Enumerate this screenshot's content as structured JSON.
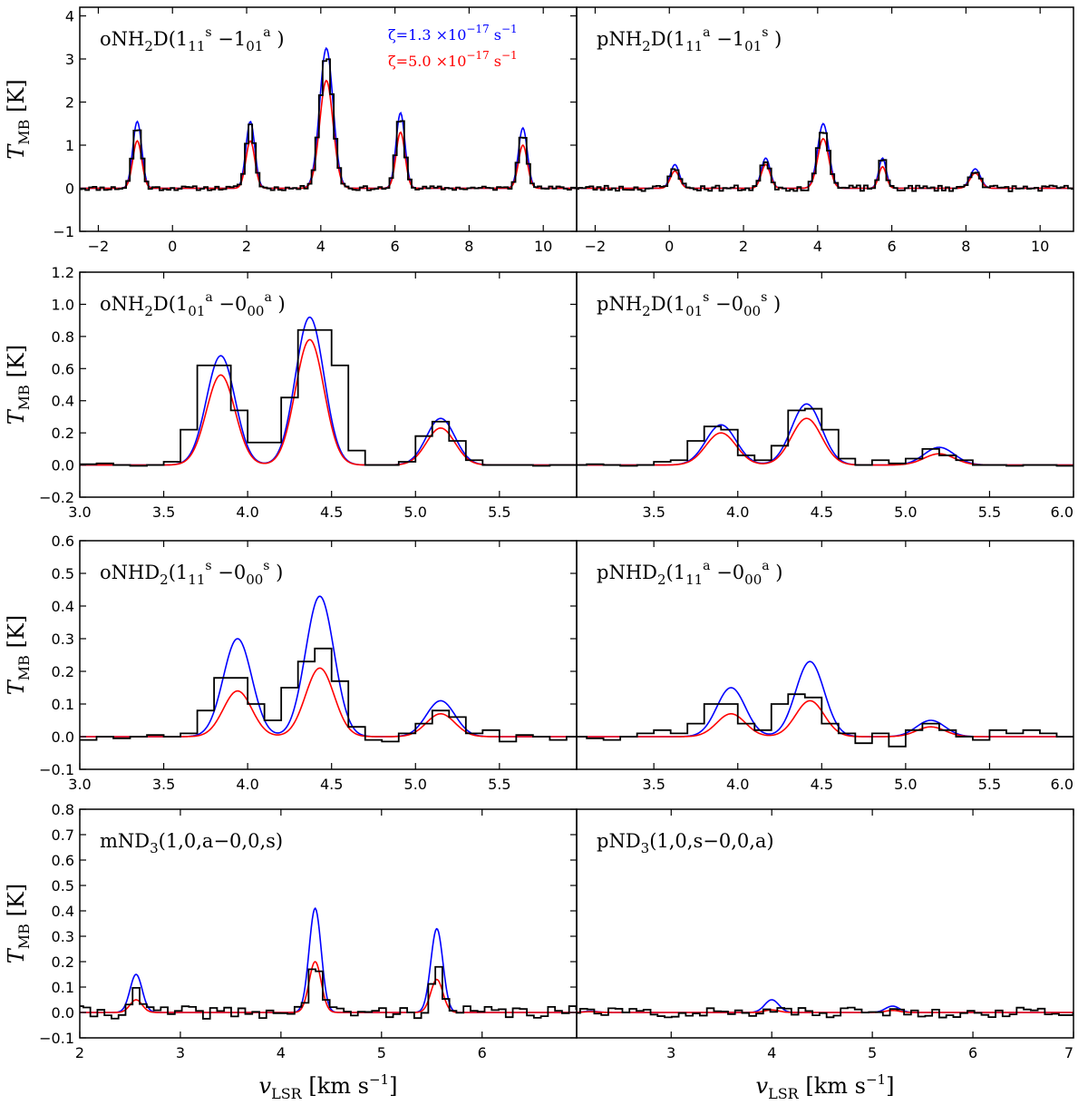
{
  "colors": {
    "observed": "#000000",
    "model_low_zeta": "#0000ff",
    "model_high_zeta": "#ff0000"
  },
  "legend": {
    "low": {
      "prefix": "ζ=1.3 ×10",
      "exp": "−17",
      "unit": "s",
      "unit_exp": "−1"
    },
    "high": {
      "prefix": "ζ=5.0 ×10",
      "exp": "−17",
      "unit": "s",
      "unit_exp": "−1"
    }
  },
  "axis_titles": {
    "y": {
      "main": "T",
      "sub": "MB",
      "unit": " [K]"
    },
    "x": {
      "main": "v",
      "sub": "LSR",
      "unit": " [km s",
      "unit_exp": "−1",
      "close": "]"
    }
  },
  "chart_data": [
    {
      "type": "line",
      "id": "oNH2D-11-10",
      "label": {
        "species": "oNH",
        "sub": "2",
        "rest": "D(1",
        "q1sub": "11",
        "q1sup": "s",
        "mid": " −1",
        "q2sub": "01",
        "q2sup": "a",
        "end": " )"
      },
      "xlim": [
        -2.5,
        10.9
      ],
      "ylim": [
        -1,
        4.2
      ],
      "xticks": [
        -2,
        0,
        2,
        4,
        6,
        8,
        10
      ],
      "xtick_labels": [
        "−2",
        "0",
        "2",
        "4",
        "6",
        "8",
        "10"
      ],
      "yticks": [
        -1,
        0,
        1,
        2,
        3,
        4
      ],
      "ytick_labels": [
        "−1",
        "0",
        "1",
        "2",
        "3",
        "4"
      ],
      "components": [
        {
          "center": -0.95,
          "width": 0.12,
          "blue": 1.55,
          "red": 1.1
        },
        {
          "center": 2.1,
          "width": 0.12,
          "blue": 1.55,
          "red": 1.1
        },
        {
          "center": 4.15,
          "width": 0.18,
          "blue": 3.25,
          "red": 2.5
        },
        {
          "center": 6.15,
          "width": 0.12,
          "blue": 1.75,
          "red": 1.3
        },
        {
          "center": 9.45,
          "width": 0.12,
          "blue": 1.4,
          "red": 1.0
        }
      ],
      "observed_scale": 0.95,
      "noise": 0.05,
      "step": 0.1,
      "seed": 11
    },
    {
      "type": "line",
      "id": "pNH2D-11-10",
      "label": {
        "species": "pNH",
        "sub": "2",
        "rest": "D(1",
        "q1sub": "11",
        "q1sup": "a",
        "mid": " −1",
        "q2sub": "01",
        "q2sup": "s",
        "end": " )"
      },
      "xlim": [
        -2.5,
        10.9
      ],
      "ylim": [
        -1,
        4.2
      ],
      "xticks": [
        -2,
        0,
        2,
        4,
        6,
        8,
        10
      ],
      "xtick_labels": [
        "−2",
        "0",
        "2",
        "4",
        "6",
        "8",
        "10"
      ],
      "yticks": [],
      "ytick_labels": [],
      "components": [
        {
          "center": 0.15,
          "width": 0.12,
          "blue": 0.55,
          "red": 0.4
        },
        {
          "center": 2.6,
          "width": 0.12,
          "blue": 0.7,
          "red": 0.55
        },
        {
          "center": 4.15,
          "width": 0.15,
          "blue": 1.5,
          "red": 1.15
        },
        {
          "center": 5.75,
          "width": 0.1,
          "blue": 0.7,
          "red": 0.5
        },
        {
          "center": 8.25,
          "width": 0.14,
          "blue": 0.45,
          "red": 0.35
        }
      ],
      "observed_scale": 0.95,
      "noise": 0.07,
      "step": 0.1,
      "seed": 23
    },
    {
      "type": "line",
      "id": "oNH2D-01-00",
      "label": {
        "species": "oNH",
        "sub": "2",
        "rest": "D(1",
        "q1sub": "01",
        "q1sup": "a",
        "mid": " −0",
        "q2sub": "00",
        "q2sup": "a",
        "end": " )"
      },
      "xlim": [
        3.0,
        5.96
      ],
      "ylim": [
        -0.2,
        1.2
      ],
      "xticks": [
        3.0,
        3.5,
        4.0,
        4.5,
        5.0,
        5.5
      ],
      "xtick_labels": [
        "3.0",
        "3.5",
        "4.0",
        "4.5",
        "5.0",
        "5.5"
      ],
      "yticks": [
        -0.2,
        0.0,
        0.2,
        0.4,
        0.6,
        0.8,
        1.0,
        1.2
      ],
      "ytick_labels": [
        "−0.2",
        "0.0",
        "0.2",
        "0.4",
        "0.6",
        "0.8",
        "1.0",
        "1.2"
      ],
      "components": [
        {
          "center": 3.84,
          "width": 0.085,
          "blue": 0.68,
          "red": 0.56
        },
        {
          "center": 4.37,
          "width": 0.085,
          "blue": 0.92,
          "red": 0.78
        },
        {
          "center": 5.15,
          "width": 0.085,
          "blue": 0.29,
          "red": 0.23
        }
      ],
      "observed": [
        [
          2.95,
          0.0
        ],
        [
          3.05,
          0.005
        ],
        [
          3.15,
          0.01
        ],
        [
          3.25,
          0.0
        ],
        [
          3.35,
          -0.005
        ],
        [
          3.45,
          0.0
        ],
        [
          3.55,
          0.02
        ],
        [
          3.65,
          0.22
        ],
        [
          3.75,
          0.62
        ],
        [
          3.85,
          0.62
        ],
        [
          3.95,
          0.34
        ],
        [
          4.05,
          0.14
        ],
        [
          4.15,
          0.14
        ],
        [
          4.25,
          0.42
        ],
        [
          4.35,
          0.84
        ],
        [
          4.45,
          0.84
        ],
        [
          4.55,
          0.62
        ],
        [
          4.65,
          0.09
        ],
        [
          4.75,
          0.0
        ],
        [
          4.85,
          0.0
        ],
        [
          4.95,
          0.02
        ],
        [
          5.05,
          0.18
        ],
        [
          5.15,
          0.27
        ],
        [
          5.25,
          0.15
        ],
        [
          5.35,
          0.03
        ],
        [
          5.45,
          0.0
        ],
        [
          5.55,
          0.0
        ],
        [
          5.65,
          0.0
        ],
        [
          5.75,
          -0.005
        ],
        [
          5.85,
          0.0
        ],
        [
          5.95,
          0.0
        ]
      ]
    },
    {
      "type": "line",
      "id": "pNH2D-01-00",
      "label": {
        "species": "pNH",
        "sub": "2",
        "rest": "D(1",
        "q1sub": "01",
        "q1sup": "s",
        "mid": " −0",
        "q2sub": "00",
        "q2sup": "s",
        "end": " )"
      },
      "xlim": [
        3.04,
        6.0
      ],
      "ylim": [
        -0.2,
        1.2
      ],
      "xticks": [
        3.5,
        4.0,
        4.5,
        5.0,
        5.5,
        6.0
      ],
      "xtick_labels": [
        "3.5",
        "4.0",
        "4.5",
        "5.0",
        "5.5",
        "6.0"
      ],
      "yticks": [],
      "ytick_labels": [],
      "components": [
        {
          "center": 3.9,
          "width": 0.09,
          "blue": 0.25,
          "red": 0.2
        },
        {
          "center": 4.41,
          "width": 0.09,
          "blue": 0.38,
          "red": 0.29
        },
        {
          "center": 5.2,
          "width": 0.09,
          "blue": 0.11,
          "red": 0.07
        }
      ],
      "observed": [
        [
          3.05,
          0.0
        ],
        [
          3.15,
          0.005
        ],
        [
          3.25,
          0.0
        ],
        [
          3.35,
          -0.005
        ],
        [
          3.45,
          0.0
        ],
        [
          3.55,
          0.02
        ],
        [
          3.65,
          0.03
        ],
        [
          3.75,
          0.15
        ],
        [
          3.85,
          0.24
        ],
        [
          3.95,
          0.22
        ],
        [
          4.05,
          0.06
        ],
        [
          4.15,
          0.03
        ],
        [
          4.25,
          0.12
        ],
        [
          4.35,
          0.34
        ],
        [
          4.45,
          0.35
        ],
        [
          4.55,
          0.22
        ],
        [
          4.65,
          0.04
        ],
        [
          4.75,
          0.0
        ],
        [
          4.85,
          0.03
        ],
        [
          4.95,
          0.01
        ],
        [
          5.05,
          0.04
        ],
        [
          5.15,
          0.1
        ],
        [
          5.25,
          0.06
        ],
        [
          5.35,
          0.03
        ],
        [
          5.45,
          0.0
        ],
        [
          5.55,
          0.0
        ],
        [
          5.65,
          -0.005
        ],
        [
          5.75,
          0.0
        ],
        [
          5.85,
          0.0
        ],
        [
          5.95,
          -0.005
        ]
      ]
    },
    {
      "type": "line",
      "id": "oNHD2-11-00",
      "label": {
        "species": "oNHD",
        "sub": "2",
        "rest": "(1",
        "q1sub": "11",
        "q1sup": "s",
        "mid": " −0",
        "q2sub": "00",
        "q2sup": "s",
        "end": " )"
      },
      "xlim": [
        3.0,
        5.96
      ],
      "ylim": [
        -0.1,
        0.6
      ],
      "xticks": [
        3.0,
        3.5,
        4.0,
        4.5,
        5.0,
        5.5
      ],
      "xtick_labels": [
        "3.0",
        "3.5",
        "4.0",
        "4.5",
        "5.0",
        "5.5"
      ],
      "yticks": [
        -0.1,
        0.0,
        0.1,
        0.2,
        0.3,
        0.4,
        0.5,
        0.6
      ],
      "ytick_labels": [
        "−0.1",
        "0.0",
        "0.1",
        "0.2",
        "0.3",
        "0.4",
        "0.5",
        "0.6"
      ],
      "components": [
        {
          "center": 3.94,
          "width": 0.085,
          "blue": 0.3,
          "red": 0.14
        },
        {
          "center": 4.43,
          "width": 0.085,
          "blue": 0.43,
          "red": 0.21
        },
        {
          "center": 5.15,
          "width": 0.085,
          "blue": 0.11,
          "red": 0.07
        }
      ],
      "observed": [
        [
          3.05,
          -0.01
        ],
        [
          3.15,
          0.0
        ],
        [
          3.25,
          -0.005
        ],
        [
          3.35,
          0.0
        ],
        [
          3.45,
          0.005
        ],
        [
          3.55,
          0.0
        ],
        [
          3.65,
          0.01
        ],
        [
          3.75,
          0.08
        ],
        [
          3.85,
          0.18
        ],
        [
          3.95,
          0.18
        ],
        [
          4.05,
          0.1
        ],
        [
          4.15,
          0.05
        ],
        [
          4.25,
          0.15
        ],
        [
          4.35,
          0.23
        ],
        [
          4.45,
          0.27
        ],
        [
          4.55,
          0.17
        ],
        [
          4.65,
          0.03
        ],
        [
          4.75,
          -0.01
        ],
        [
          4.85,
          -0.015
        ],
        [
          4.95,
          0.01
        ],
        [
          5.05,
          0.04
        ],
        [
          5.15,
          0.08
        ],
        [
          5.25,
          0.06
        ],
        [
          5.35,
          0.01
        ],
        [
          5.45,
          0.02
        ],
        [
          5.55,
          -0.015
        ],
        [
          5.65,
          0.005
        ],
        [
          5.75,
          0.0
        ],
        [
          5.85,
          -0.01
        ],
        [
          5.95,
          0.0
        ]
      ]
    },
    {
      "type": "line",
      "id": "pNHD2-11-00",
      "label": {
        "species": "pNHD",
        "sub": "2",
        "rest": "(1",
        "q1sub": "11",
        "q1sup": "a",
        "mid": " −0",
        "q2sub": "00",
        "q2sup": "a",
        "end": " )"
      },
      "xlim": [
        3.04,
        6.0
      ],
      "ylim": [
        -0.1,
        0.6
      ],
      "xticks": [
        3.5,
        4.0,
        4.5,
        5.0,
        5.5,
        6.0
      ],
      "xtick_labels": [
        "3.5",
        "4.0",
        "4.5",
        "5.0",
        "5.5",
        "6.0"
      ],
      "yticks": [],
      "ytick_labels": [],
      "components": [
        {
          "center": 3.96,
          "width": 0.085,
          "blue": 0.15,
          "red": 0.07
        },
        {
          "center": 4.43,
          "width": 0.085,
          "blue": 0.23,
          "red": 0.11
        },
        {
          "center": 5.15,
          "width": 0.085,
          "blue": 0.05,
          "red": 0.03
        }
      ],
      "observed": [
        [
          3.05,
          0.0
        ],
        [
          3.15,
          -0.005
        ],
        [
          3.25,
          -0.01
        ],
        [
          3.35,
          0.0
        ],
        [
          3.45,
          0.01
        ],
        [
          3.55,
          0.02
        ],
        [
          3.65,
          0.01
        ],
        [
          3.75,
          0.04
        ],
        [
          3.85,
          0.1
        ],
        [
          3.95,
          0.1
        ],
        [
          4.05,
          0.04
        ],
        [
          4.15,
          0.02
        ],
        [
          4.25,
          0.1
        ],
        [
          4.35,
          0.13
        ],
        [
          4.45,
          0.12
        ],
        [
          4.55,
          0.04
        ],
        [
          4.65,
          0.01
        ],
        [
          4.75,
          -0.02
        ],
        [
          4.85,
          0.01
        ],
        [
          4.95,
          -0.03
        ],
        [
          5.05,
          0.02
        ],
        [
          5.15,
          0.04
        ],
        [
          5.25,
          0.02
        ],
        [
          5.35,
          0.0
        ],
        [
          5.45,
          -0.01
        ],
        [
          5.55,
          0.02
        ],
        [
          5.65,
          0.01
        ],
        [
          5.75,
          0.02
        ],
        [
          5.85,
          0.01
        ],
        [
          5.95,
          0.0
        ]
      ]
    },
    {
      "type": "line",
      "id": "mND3",
      "label": {
        "species": "mND",
        "sub": "3",
        "rest": "(1,0,a−0,0,s)"
      },
      "xlim": [
        2.0,
        6.94
      ],
      "ylim": [
        -0.1,
        0.8
      ],
      "xticks": [
        2,
        3,
        4,
        5,
        6
      ],
      "xtick_labels": [
        "2",
        "3",
        "4",
        "5",
        "6"
      ],
      "yticks": [
        -0.1,
        0.0,
        0.1,
        0.2,
        0.3,
        0.4,
        0.5,
        0.6,
        0.7,
        0.8
      ],
      "ytick_labels": [
        "−0.1",
        "0.0",
        "0.1",
        "0.2",
        "0.3",
        "0.4",
        "0.5",
        "0.6",
        "0.7",
        "0.8"
      ],
      "components": [
        {
          "center": 2.56,
          "width": 0.06,
          "blue": 0.15,
          "red": 0.05
        },
        {
          "center": 4.34,
          "width": 0.06,
          "blue": 0.41,
          "red": 0.2
        },
        {
          "center": 5.55,
          "width": 0.06,
          "blue": 0.33,
          "red": 0.13
        }
      ],
      "observed_scale": 0.5,
      "noise": 0.025,
      "step": 0.07,
      "seed": 41
    },
    {
      "type": "line",
      "id": "pND3",
      "label": {
        "species": "pND",
        "sub": "3",
        "rest": "(1,0,s−0,0,a)"
      },
      "xlim": [
        2.06,
        7.0
      ],
      "ylim": [
        -0.1,
        0.8
      ],
      "xticks": [
        3,
        4,
        5,
        6,
        7
      ],
      "xtick_labels": [
        "3",
        "4",
        "5",
        "6",
        "7"
      ],
      "yticks": [],
      "ytick_labels": [],
      "components": [
        {
          "center": 2.2,
          "width": 0.07,
          "blue": 0.005,
          "red": 0.003
        },
        {
          "center": 4.0,
          "width": 0.07,
          "blue": 0.05,
          "red": 0.01
        },
        {
          "center": 5.2,
          "width": 0.07,
          "blue": 0.025,
          "red": 0.008
        }
      ],
      "observed_scale": 0.2,
      "noise": 0.02,
      "step": 0.07,
      "seed": 57
    }
  ]
}
